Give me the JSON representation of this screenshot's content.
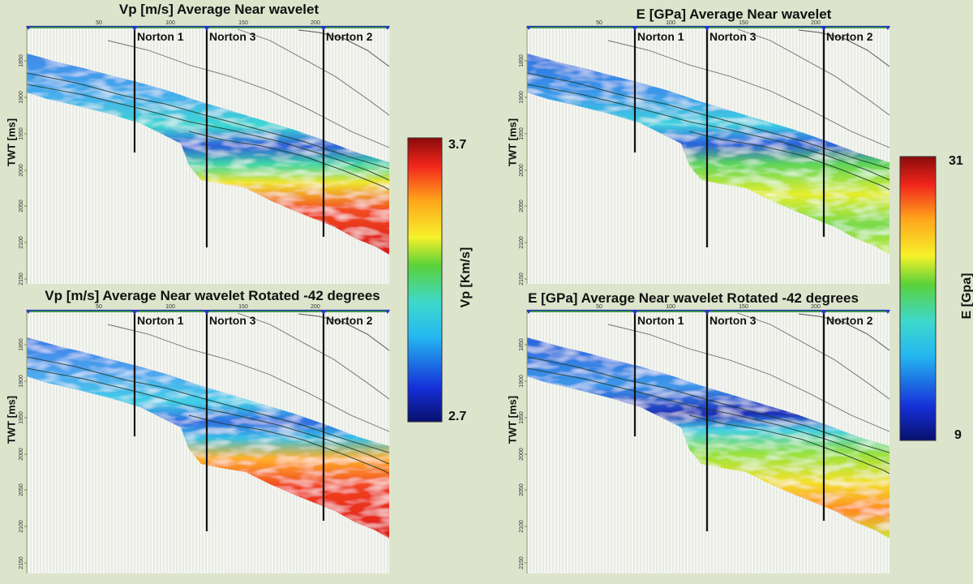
{
  "panels": [
    {
      "title": "Vp [m/s] Average Near wavelet",
      "ylabel": "TWT [ms]",
      "variant": "vp1"
    },
    {
      "title": "E [GPa] Average Near wavelet",
      "ylabel": "TWT [ms]",
      "variant": "e1"
    },
    {
      "title": "Vp [m/s] Average Near wavelet Rotated -42 degrees",
      "ylabel": "TWT [ms]",
      "variant": "vp2"
    },
    {
      "title": "E [GPa] Average Near wavelet Rotated -42 degrees",
      "ylabel": "TWT [ms]",
      "variant": "e2"
    }
  ],
  "wells": [
    "Norton 1",
    "Norton 3",
    "Norton 2"
  ],
  "x_ticks": [
    "50",
    "100",
    "150",
    "200"
  ],
  "y_ticks": [
    "1850",
    "1900",
    "1950",
    "2000",
    "2050",
    "2100",
    "2150"
  ],
  "colorbars": [
    {
      "axis_label": "Vp [Km/s]",
      "max": "3.7",
      "min": "2.7"
    },
    {
      "axis_label": "E [Gpa]",
      "max": "31",
      "min": "9"
    }
  ]
}
